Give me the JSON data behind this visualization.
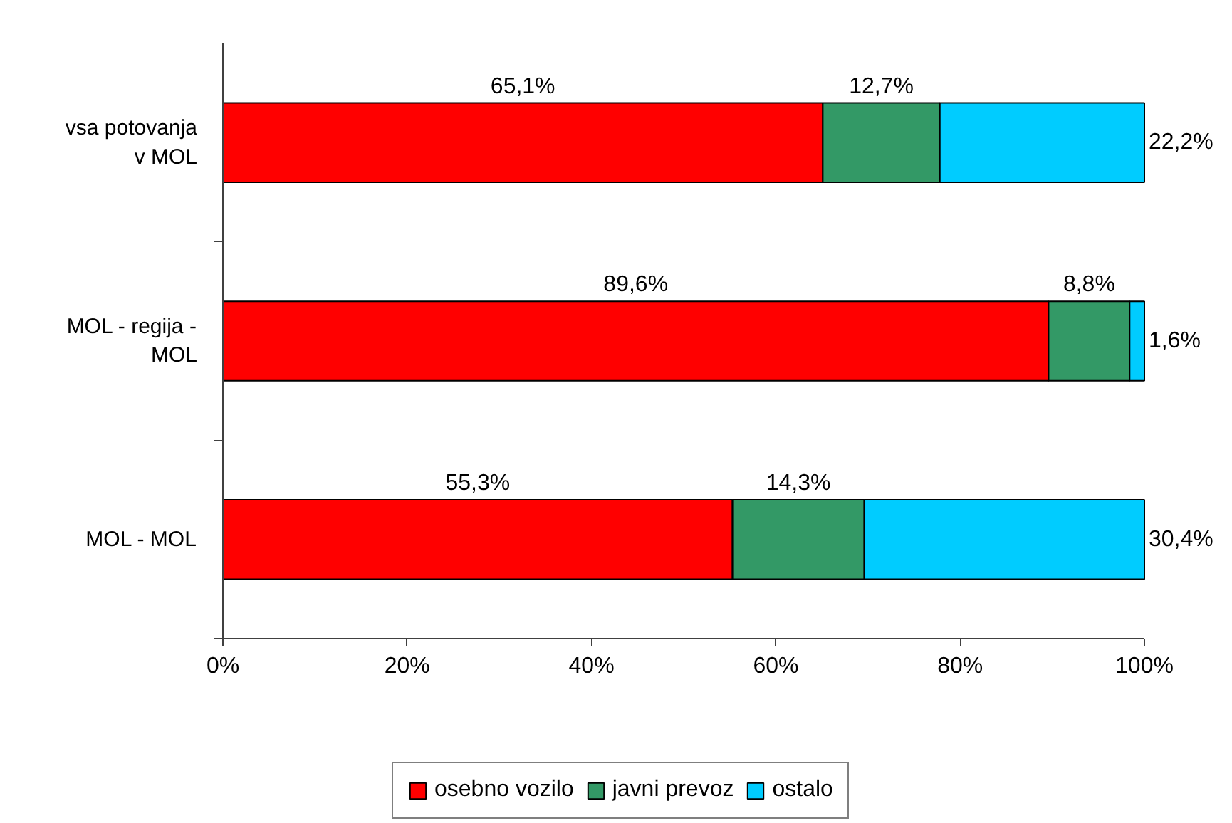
{
  "chart_data": {
    "type": "bar",
    "orientation": "horizontal",
    "stacked": true,
    "categories": [
      "vsa potovanja v MOL",
      "MOL - regija - MOL",
      "MOL - MOL"
    ],
    "series": [
      {
        "name": "osebno vozilo",
        "color": "#ff0000",
        "values": [
          65.1,
          89.6,
          55.3
        ],
        "value_labels": [
          "65,1%",
          "89,6%",
          "55,3%"
        ]
      },
      {
        "name": "javni prevoz",
        "color": "#339966",
        "values": [
          12.7,
          8.8,
          14.3
        ],
        "value_labels": [
          "12,7%",
          "8,8%",
          "14,3%"
        ]
      },
      {
        "name": "ostalo",
        "color": "#00ccff",
        "values": [
          22.2,
          1.6,
          30.4
        ],
        "value_labels": [
          "22,2%",
          "1,6%",
          "30,4%"
        ]
      }
    ],
    "xlim": [
      0,
      100
    ],
    "xticks": [
      {
        "value": 0,
        "label": "0%"
      },
      {
        "value": 20,
        "label": "20%"
      },
      {
        "value": 40,
        "label": "40%"
      },
      {
        "value": 60,
        "label": "60%"
      },
      {
        "value": 80,
        "label": "80%"
      },
      {
        "value": 100,
        "label": "100%"
      }
    ],
    "legend": "bottom"
  }
}
